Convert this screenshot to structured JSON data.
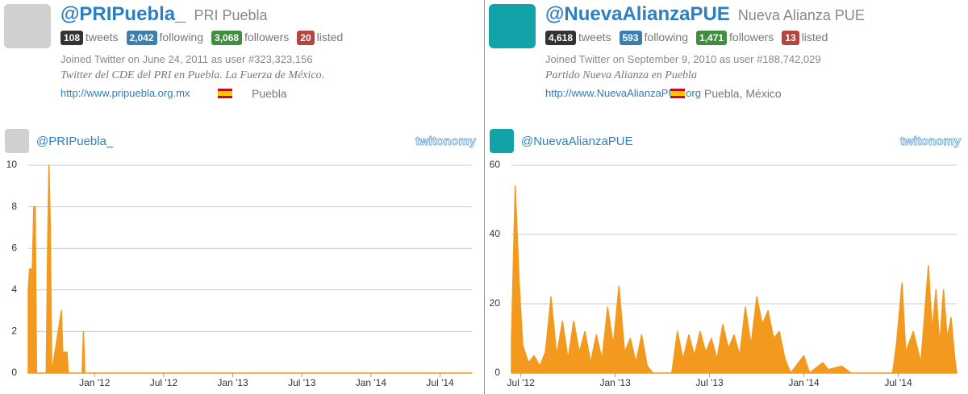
{
  "profiles": [
    {
      "handle": "@PRIPuebla_",
      "name": "PRI Puebla",
      "stats": [
        {
          "count": "108",
          "label": "tweets"
        },
        {
          "count": "2,042",
          "label": "following"
        },
        {
          "count": "3,068",
          "label": "followers"
        },
        {
          "count": "20",
          "label": "listed"
        }
      ],
      "joined": "Joined Twitter on June 24, 2011 as user #323,323,156",
      "bio": "Twitter del CDE del PRI en Puebla. La Fuerza de México.",
      "url": "http://www.pripuebla.org.mx",
      "location": "Puebla"
    },
    {
      "handle": "@NuevaAlianzaPUE",
      "name": "Nueva Alianza PUE",
      "stats": [
        {
          "count": "4,618",
          "label": "tweets"
        },
        {
          "count": "593",
          "label": "following"
        },
        {
          "count": "1,471",
          "label": "followers"
        },
        {
          "count": "13",
          "label": "listed"
        }
      ],
      "joined": "Joined Twitter on September 9, 2010 as user #188,742,029",
      "bio": "Partido Nueva Alianza en Puebla",
      "url": "http://www.NuevaAlianzaPUE.org",
      "location": "Puebla, México"
    }
  ],
  "chart_data": [
    {
      "type": "area",
      "title": "@PRIPuebla_",
      "brand": "twitonomy",
      "color": "#f39a1e",
      "grid": true,
      "xlim": [
        2011.52,
        2014.73
      ],
      "ylim": [
        0,
        10
      ],
      "yticks": [
        0,
        2,
        4,
        6,
        8,
        10
      ],
      "xticks": [
        {
          "value": 2012,
          "label": "Jan '12"
        },
        {
          "value": 2012.5,
          "label": "Jul '12"
        },
        {
          "value": 2013,
          "label": "Jan '13"
        },
        {
          "value": 2013.5,
          "label": "Jul '13"
        },
        {
          "value": 2014,
          "label": "Jan '14"
        },
        {
          "value": 2014.5,
          "label": "Jul '14"
        }
      ],
      "x": [
        2011.52,
        2011.53,
        2011.55,
        2011.56,
        2011.57,
        2011.58,
        2011.65,
        2011.66,
        2011.67,
        2011.68,
        2011.69,
        2011.76,
        2011.77,
        2011.78,
        2011.8,
        2011.81,
        2011.91,
        2011.92,
        2011.93,
        2014.73
      ],
      "values": [
        4,
        5,
        5,
        8,
        8,
        0,
        0,
        6,
        10,
        7,
        0,
        3,
        1,
        1,
        1,
        0,
        0,
        2,
        0,
        0
      ]
    },
    {
      "type": "area",
      "title": "@NuevaAlianzaPUE",
      "brand": "twitonomy",
      "color": "#f39a1e",
      "grid": true,
      "xlim": [
        2012.45,
        2014.81
      ],
      "ylim": [
        0,
        60
      ],
      "yticks": [
        0,
        20,
        40,
        60
      ],
      "xticks": [
        {
          "value": 2012.5,
          "label": "Jul '12"
        },
        {
          "value": 2013,
          "label": "Jan '13"
        },
        {
          "value": 2013.5,
          "label": "Jul '13"
        },
        {
          "value": 2014,
          "label": "Jan '14"
        },
        {
          "value": 2014.5,
          "label": "Jul '14"
        }
      ],
      "x": [
        2012.45,
        2012.47,
        2012.49,
        2012.51,
        2012.54,
        2012.57,
        2012.6,
        2012.63,
        2012.66,
        2012.69,
        2012.72,
        2012.75,
        2012.78,
        2012.81,
        2012.84,
        2012.87,
        2012.9,
        2012.93,
        2012.96,
        2012.99,
        2013.02,
        2013.05,
        2013.08,
        2013.11,
        2013.14,
        2013.17,
        2013.2,
        2013.3,
        2013.33,
        2013.36,
        2013.39,
        2013.42,
        2013.45,
        2013.48,
        2013.51,
        2013.54,
        2013.57,
        2013.6,
        2013.63,
        2013.66,
        2013.69,
        2013.72,
        2013.75,
        2013.78,
        2013.81,
        2013.84,
        2013.87,
        2013.9,
        2013.93,
        2014.0,
        2014.03,
        2014.1,
        2014.13,
        2014.2,
        2014.25,
        2014.47,
        2014.49,
        2014.52,
        2014.54,
        2014.58,
        2014.62,
        2014.66,
        2014.68,
        2014.7,
        2014.72,
        2014.74,
        2014.76,
        2014.78,
        2014.8,
        2014.81
      ],
      "values": [
        9,
        54,
        27,
        8,
        3,
        5,
        2,
        6,
        22,
        5,
        15,
        4,
        15,
        6,
        12,
        3,
        11,
        4,
        19,
        8,
        25,
        6,
        10,
        3,
        11,
        2,
        0,
        0,
        12,
        4,
        11,
        5,
        12,
        6,
        10,
        4,
        14,
        7,
        11,
        5,
        19,
        8,
        22,
        14,
        18,
        10,
        12,
        4,
        0,
        5,
        0,
        3,
        1,
        2,
        0,
        0,
        8,
        26,
        6,
        12,
        3,
        31,
        12,
        24,
        8,
        24,
        10,
        16,
        4,
        0
      ]
    }
  ]
}
